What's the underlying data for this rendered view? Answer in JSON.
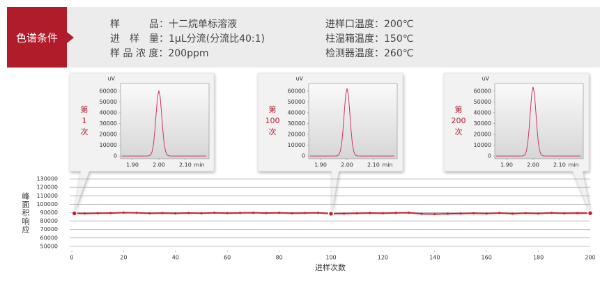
{
  "header": {
    "tag": "色谱条件",
    "left": [
      "样　　　品：十二烷单标溶液",
      "进　样　量：1μL分流(分流比40:1)",
      "样 品 浓 度：200ppm"
    ],
    "right": [
      "进样口温度：200℃",
      "柱温箱温度：150℃",
      "检测器温度：260℃"
    ]
  },
  "chart_data": [
    {
      "type": "line",
      "y_label": "峰面积响应",
      "x_label": "进样次数",
      "x": [
        1,
        5,
        10,
        15,
        20,
        25,
        30,
        35,
        40,
        45,
        50,
        55,
        60,
        65,
        70,
        75,
        80,
        85,
        90,
        95,
        100,
        105,
        110,
        115,
        120,
        125,
        130,
        135,
        140,
        145,
        150,
        155,
        160,
        165,
        170,
        175,
        180,
        185,
        190,
        195,
        200
      ],
      "values": [
        89200,
        89000,
        89300,
        89500,
        90000,
        89800,
        89200,
        89500,
        89100,
        89600,
        89300,
        89800,
        89400,
        89700,
        89900,
        89500,
        89800,
        89300,
        89600,
        89800,
        88800,
        88900,
        89200,
        89600,
        89300,
        89700,
        89900,
        88600,
        88300,
        88700,
        88900,
        89300,
        88900,
        89600,
        88800,
        89400,
        89000,
        89700,
        89200,
        89500,
        89400
      ],
      "color": "#cc1f2d",
      "markers_x": [
        1,
        100,
        200
      ],
      "xlim": [
        0,
        200
      ],
      "xticks": [
        0,
        20,
        40,
        60,
        80,
        100,
        120,
        140,
        160,
        180,
        200
      ],
      "ylim": [
        45000,
        135000
      ],
      "yticks": [
        50000,
        60000,
        70000,
        80000,
        90000,
        100000,
        110000,
        120000,
        130000
      ],
      "grid": true
    },
    {
      "type": "line",
      "label_lines": [
        "第",
        "1",
        "次"
      ],
      "y_label": "uV",
      "x_label": "min",
      "color": "#d0306a",
      "x": [
        1.86,
        1.9,
        1.94,
        1.96,
        1.965,
        1.97,
        1.975,
        1.98,
        1.985,
        1.99,
        1.995,
        2,
        2.005,
        2.01,
        2.015,
        2.02,
        2.025,
        2.03,
        2.035,
        2.04,
        2.06,
        2.1,
        2.14,
        2.18
      ],
      "values": [
        0,
        0,
        0,
        80,
        390,
        1470,
        4570,
        11560,
        23900,
        40050,
        54570,
        60500,
        54570,
        40050,
        23900,
        11560,
        4570,
        1470,
        390,
        80,
        0,
        0,
        0,
        0
      ],
      "xlim": [
        1.855,
        2.19
      ],
      "xticks": [
        {
          "value": 1.9,
          "label": "1.90"
        },
        {
          "value": 2,
          "label": "2.00"
        },
        {
          "value": 2.1,
          "label": "2.10"
        }
      ],
      "ylim": [
        -2500,
        67000
      ],
      "yticks": [
        0,
        10000,
        20000,
        30000,
        40000,
        50000,
        60000
      ]
    },
    {
      "type": "line",
      "label_lines": [
        "第",
        "100",
        "次"
      ],
      "y_label": "uV",
      "x_label": "min",
      "color": "#d0306a",
      "x": [
        1.86,
        1.9,
        1.94,
        1.96,
        1.965,
        1.97,
        1.975,
        1.98,
        1.985,
        1.99,
        1.995,
        2,
        2.005,
        2.01,
        2.015,
        2.02,
        2.025,
        2.03,
        2.035,
        2.04,
        2.06,
        2.1,
        2.14,
        2.18
      ],
      "values": [
        0,
        0,
        0,
        80,
        400,
        1520,
        4730,
        11940,
        24690,
        41380,
        56380,
        62500,
        56380,
        41380,
        24690,
        11940,
        4730,
        1520,
        400,
        80,
        0,
        0,
        0,
        0
      ],
      "xlim": [
        1.855,
        2.19
      ],
      "xticks": [
        {
          "value": 1.9,
          "label": "1.90"
        },
        {
          "value": 2,
          "label": "2.00"
        },
        {
          "value": 2.1,
          "label": "2.10"
        }
      ],
      "ylim": [
        -2500,
        67000
      ],
      "yticks": [
        0,
        10000,
        20000,
        30000,
        40000,
        50000,
        60000
      ]
    },
    {
      "type": "line",
      "label_lines": [
        "第",
        "200",
        "次"
      ],
      "y_label": "uV",
      "x_label": "min",
      "color": "#d0306a",
      "x": [
        1.86,
        1.9,
        1.94,
        1.96,
        1.965,
        1.97,
        1.975,
        1.98,
        1.985,
        1.99,
        1.995,
        2,
        2.005,
        2.01,
        2.015,
        2.02,
        2.025,
        2.03,
        2.035,
        2.04,
        2.06,
        2.1,
        2.14,
        2.18
      ],
      "values": [
        0,
        0,
        0,
        85,
        410,
        1560,
        4840,
        12230,
        25280,
        42370,
        57730,
        64000,
        57730,
        42370,
        25280,
        12230,
        4840,
        1560,
        410,
        85,
        0,
        0,
        0,
        0
      ],
      "xlim": [
        1.855,
        2.19
      ],
      "xticks": [
        {
          "value": 1.9,
          "label": "1.90"
        },
        {
          "value": 2,
          "label": "2.00"
        },
        {
          "value": 2.1,
          "label": "2.10"
        }
      ],
      "ylim": [
        -2500,
        67000
      ],
      "yticks": [
        0,
        10000,
        20000,
        30000,
        40000,
        50000,
        60000
      ]
    }
  ]
}
